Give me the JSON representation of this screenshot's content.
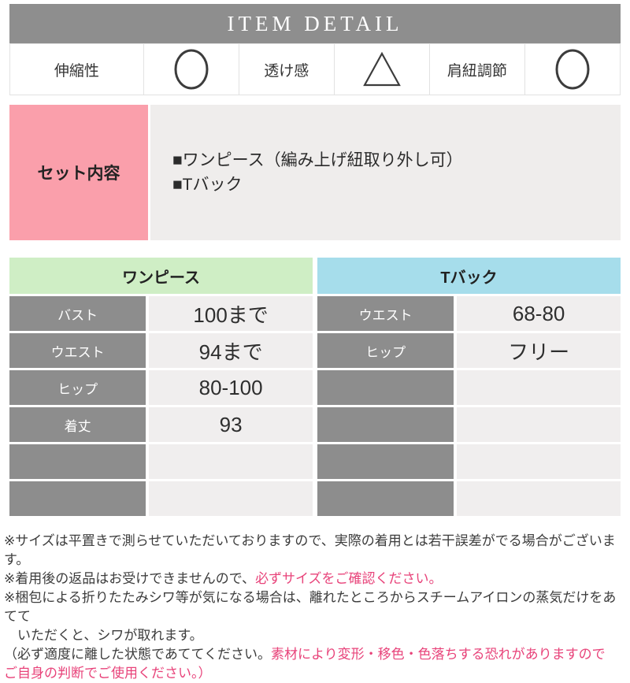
{
  "header": {
    "title": "ITEM DETAIL"
  },
  "attributes": [
    {
      "label": "伸縮性",
      "symbol": "circle"
    },
    {
      "label": "透け感",
      "symbol": "triangle"
    },
    {
      "label": "肩紐調節",
      "symbol": "circle"
    }
  ],
  "set_contents": {
    "label": "セット内容",
    "items": [
      "■ワンピース（編み上げ紐取り外し可）",
      "■Tバック"
    ]
  },
  "size_tables": [
    {
      "title": "ワンピース",
      "header_color": "#cfeec5",
      "rows": [
        {
          "label": "バスト",
          "value": "100まで"
        },
        {
          "label": "ウエスト",
          "value": "94まで"
        },
        {
          "label": "ヒップ",
          "value": "80-100"
        },
        {
          "label": "着丈",
          "value": "93"
        },
        {
          "label": "",
          "value": ""
        },
        {
          "label": "",
          "value": ""
        }
      ]
    },
    {
      "title": "Tバック",
      "header_color": "#a6ddeb",
      "rows": [
        {
          "label": "ウエスト",
          "value": "68-80"
        },
        {
          "label": "ヒップ",
          "value": "フリー"
        },
        {
          "label": "",
          "value": ""
        },
        {
          "label": "",
          "value": ""
        },
        {
          "label": "",
          "value": ""
        },
        {
          "label": "",
          "value": ""
        }
      ]
    }
  ],
  "notes": {
    "lines": [
      [
        {
          "text": "※サイズは平置きで測らせていただいておりますので、実際の着用とは若干誤差がでる場合がございます。",
          "pink": false
        }
      ],
      [
        {
          "text": "※着用後の返品はお受けできませんので、",
          "pink": false
        },
        {
          "text": "必ずサイズをご確認ください。",
          "pink": true
        }
      ],
      [
        {
          "text": "※梱包による折りたたみシワ等が気になる場合は、離れたところからスチームアイロンの蒸気だけをあてて",
          "pink": false
        }
      ],
      [
        {
          "text": "　いただくと、シワが取れます。",
          "pink": false
        }
      ],
      [
        {
          "text": "（必ず適度に離した状態であててください。",
          "pink": false
        },
        {
          "text": "素材により変形・移色・色落ちする恐れがありますので",
          "pink": true
        }
      ],
      [
        {
          "text": "ご自身の判断でご使用ください。）",
          "pink": true
        }
      ]
    ]
  },
  "colors": {
    "header_bg": "#8e8e8e",
    "set_label_bg": "#fa9fab",
    "table_label_bg": "#8d8d8d",
    "onepiece_header_bg": "#cfeec5",
    "tback_header_bg": "#a6ddeb",
    "note_pink": "#e8437a",
    "symbol_stroke": "#3c3c3c"
  }
}
